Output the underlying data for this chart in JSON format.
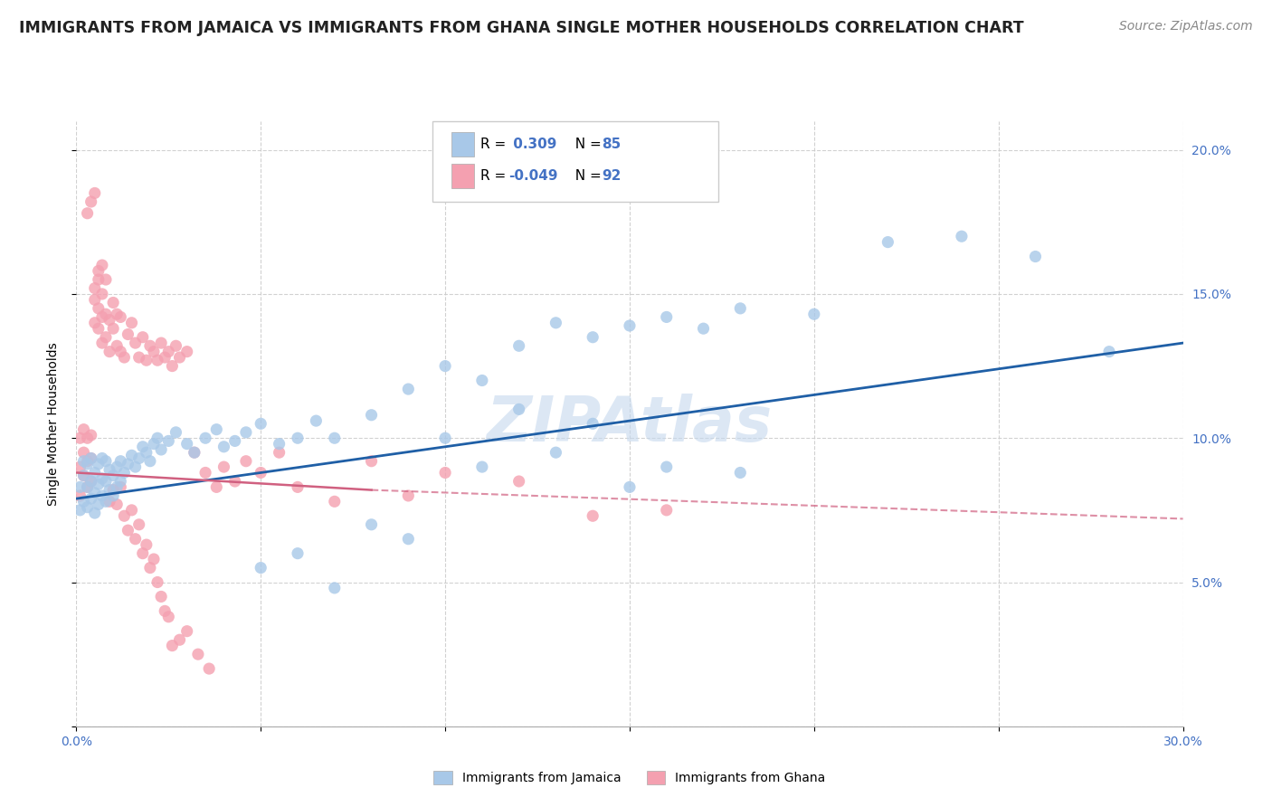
{
  "title": "IMMIGRANTS FROM JAMAICA VS IMMIGRANTS FROM GHANA SINGLE MOTHER HOUSEHOLDS CORRELATION CHART",
  "source": "Source: ZipAtlas.com",
  "ylabel": "Single Mother Households",
  "x_min": 0.0,
  "x_max": 0.3,
  "y_min": 0.0,
  "y_max": 0.21,
  "x_ticks": [
    0.0,
    0.05,
    0.1,
    0.15,
    0.2,
    0.25,
    0.3
  ],
  "x_tick_labels": [
    "0.0%",
    "",
    "",
    "",
    "",
    "",
    "30.0%"
  ],
  "y_ticks": [
    0.0,
    0.05,
    0.1,
    0.15,
    0.2
  ],
  "y_tick_labels_right": [
    "",
    "5.0%",
    "10.0%",
    "15.0%",
    "20.0%"
  ],
  "legend_jamaica": "Immigrants from Jamaica",
  "legend_ghana": "Immigrants from Ghana",
  "R_jamaica": "0.309",
  "N_jamaica": "85",
  "R_ghana": "-0.049",
  "N_ghana": "92",
  "color_jamaica": "#a8c8e8",
  "color_ghana": "#f4a0b0",
  "trendline_jamaica": "#1f5fa6",
  "trendline_ghana": "#d06080",
  "title_color": "#222222",
  "axis_color": "#4472c4",
  "watermark": "ZIPAtlas",
  "background_color": "#ffffff",
  "grid_color": "#cccccc",
  "title_fontsize": 12.5,
  "axis_label_fontsize": 10,
  "tick_fontsize": 10,
  "source_fontsize": 10,
  "jamaica_x": [
    0.001,
    0.001,
    0.002,
    0.002,
    0.002,
    0.003,
    0.003,
    0.003,
    0.004,
    0.004,
    0.004,
    0.005,
    0.005,
    0.005,
    0.006,
    0.006,
    0.006,
    0.007,
    0.007,
    0.007,
    0.008,
    0.008,
    0.008,
    0.009,
    0.009,
    0.01,
    0.01,
    0.011,
    0.011,
    0.012,
    0.012,
    0.013,
    0.014,
    0.015,
    0.016,
    0.017,
    0.018,
    0.019,
    0.02,
    0.021,
    0.022,
    0.023,
    0.025,
    0.027,
    0.03,
    0.032,
    0.035,
    0.038,
    0.04,
    0.043,
    0.046,
    0.05,
    0.055,
    0.06,
    0.065,
    0.07,
    0.08,
    0.09,
    0.1,
    0.11,
    0.12,
    0.13,
    0.14,
    0.15,
    0.16,
    0.17,
    0.18,
    0.2,
    0.22,
    0.24,
    0.26,
    0.28,
    0.05,
    0.06,
    0.07,
    0.08,
    0.09,
    0.1,
    0.11,
    0.12,
    0.13,
    0.14,
    0.15,
    0.16,
    0.18
  ],
  "jamaica_y": [
    0.075,
    0.083,
    0.078,
    0.087,
    0.092,
    0.076,
    0.083,
    0.091,
    0.079,
    0.085,
    0.093,
    0.074,
    0.081,
    0.088,
    0.077,
    0.084,
    0.091,
    0.08,
    0.086,
    0.093,
    0.078,
    0.085,
    0.092,
    0.082,
    0.089,
    0.08,
    0.087,
    0.083,
    0.09,
    0.085,
    0.092,
    0.088,
    0.091,
    0.094,
    0.09,
    0.093,
    0.097,
    0.095,
    0.092,
    0.098,
    0.1,
    0.096,
    0.099,
    0.102,
    0.098,
    0.095,
    0.1,
    0.103,
    0.097,
    0.099,
    0.102,
    0.105,
    0.098,
    0.1,
    0.106,
    0.048,
    0.108,
    0.117,
    0.125,
    0.12,
    0.132,
    0.14,
    0.135,
    0.139,
    0.142,
    0.138,
    0.145,
    0.143,
    0.168,
    0.17,
    0.163,
    0.13,
    0.055,
    0.06,
    0.1,
    0.07,
    0.065,
    0.1,
    0.09,
    0.11,
    0.095,
    0.105,
    0.083,
    0.09,
    0.088
  ],
  "ghana_x": [
    0.001,
    0.001,
    0.001,
    0.002,
    0.002,
    0.002,
    0.003,
    0.003,
    0.003,
    0.004,
    0.004,
    0.004,
    0.005,
    0.005,
    0.005,
    0.006,
    0.006,
    0.006,
    0.007,
    0.007,
    0.007,
    0.008,
    0.008,
    0.009,
    0.009,
    0.01,
    0.01,
    0.011,
    0.011,
    0.012,
    0.012,
    0.013,
    0.014,
    0.015,
    0.016,
    0.017,
    0.018,
    0.019,
    0.02,
    0.021,
    0.022,
    0.023,
    0.024,
    0.025,
    0.026,
    0.027,
    0.028,
    0.03,
    0.032,
    0.035,
    0.038,
    0.04,
    0.043,
    0.046,
    0.05,
    0.055,
    0.06,
    0.07,
    0.08,
    0.09,
    0.1,
    0.12,
    0.14,
    0.16,
    0.003,
    0.004,
    0.005,
    0.006,
    0.007,
    0.008,
    0.009,
    0.01,
    0.011,
    0.012,
    0.013,
    0.014,
    0.015,
    0.016,
    0.017,
    0.018,
    0.019,
    0.02,
    0.021,
    0.022,
    0.023,
    0.024,
    0.025,
    0.026,
    0.028,
    0.03,
    0.033,
    0.036
  ],
  "ghana_y": [
    0.08,
    0.09,
    0.1,
    0.087,
    0.095,
    0.103,
    0.083,
    0.092,
    0.1,
    0.085,
    0.093,
    0.101,
    0.14,
    0.148,
    0.152,
    0.138,
    0.145,
    0.155,
    0.133,
    0.142,
    0.15,
    0.135,
    0.143,
    0.13,
    0.141,
    0.138,
    0.147,
    0.132,
    0.143,
    0.13,
    0.142,
    0.128,
    0.136,
    0.14,
    0.133,
    0.128,
    0.135,
    0.127,
    0.132,
    0.13,
    0.127,
    0.133,
    0.128,
    0.13,
    0.125,
    0.132,
    0.128,
    0.13,
    0.095,
    0.088,
    0.083,
    0.09,
    0.085,
    0.092,
    0.088,
    0.095,
    0.083,
    0.078,
    0.092,
    0.08,
    0.088,
    0.085,
    0.073,
    0.075,
    0.178,
    0.182,
    0.185,
    0.158,
    0.16,
    0.155,
    0.078,
    0.082,
    0.077,
    0.083,
    0.073,
    0.068,
    0.075,
    0.065,
    0.07,
    0.06,
    0.063,
    0.055,
    0.058,
    0.05,
    0.045,
    0.04,
    0.038,
    0.028,
    0.03,
    0.033,
    0.025,
    0.02
  ]
}
